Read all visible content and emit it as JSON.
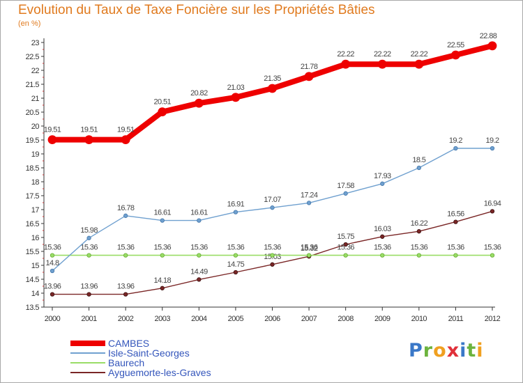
{
  "title": "Evolution du Taux de Taxe Foncière sur les Propriétés Bâties",
  "unit": "(en %)",
  "logo": {
    "text": "Proxiti",
    "letters": [
      {
        "ch": "P",
        "color": "#3a78c8"
      },
      {
        "ch": "r",
        "color": "#6cb33e"
      },
      {
        "ch": "o",
        "color": "#f0a020"
      },
      {
        "ch": "x",
        "color": "#e0303a"
      },
      {
        "ch": "i",
        "color": "#3a78c8"
      },
      {
        "ch": "t",
        "color": "#6cb33e"
      },
      {
        "ch": "i",
        "color": "#f0a020"
      }
    ]
  },
  "chart_data": {
    "type": "line",
    "title": "Evolution du Taux de Taxe Foncière sur les Propriétés Bâties",
    "ylabel": "(en %)",
    "xlabel": "",
    "x": [
      "2000",
      "2001",
      "2002",
      "2003",
      "2004",
      "2005",
      "2006",
      "2007",
      "2008",
      "2009",
      "2010",
      "2011",
      "2012"
    ],
    "ylim": [
      13.5,
      23
    ],
    "yticks": [
      "13.5",
      "14",
      "14.5",
      "15",
      "15.5",
      "16",
      "16.5",
      "17",
      "17.5",
      "18",
      "18.5",
      "19",
      "19.5",
      "20",
      "20.5",
      "21",
      "21.5",
      "22",
      "22.5",
      "23"
    ],
    "grid": false,
    "legend_position": "bottom-left",
    "series": [
      {
        "name": "CAMBES",
        "color": "#ee0000",
        "line_width": 8,
        "marker": 12,
        "values": [
          19.51,
          19.51,
          19.51,
          20.51,
          20.82,
          21.03,
          21.35,
          21.78,
          22.22,
          22.22,
          22.22,
          22.55,
          22.88
        ],
        "labels": [
          "19.51",
          "19.51",
          "19.51",
          "20.51",
          "20.82",
          "21.03",
          "21.35",
          "21.78",
          "22.22",
          "22.22",
          "22.22",
          "22.55",
          "22.88"
        ]
      },
      {
        "name": "Isle-Saint-Georges",
        "color": "#6fa0cf",
        "line_width": 1.4,
        "marker": 5.5,
        "values": [
          14.8,
          15.98,
          16.78,
          16.61,
          16.61,
          16.91,
          17.07,
          17.24,
          17.58,
          17.93,
          18.5,
          19.2,
          19.2
        ],
        "labels": [
          "14.8",
          "15.98",
          "16.78",
          "16.61",
          "16.61",
          "16.91",
          "17.07",
          "17.24",
          "17.58",
          "17.93",
          "18.5",
          "19.2",
          "19.2"
        ]
      },
      {
        "name": "Baurech",
        "color": "#99dd66",
        "line_width": 1.6,
        "marker": 5.5,
        "values": [
          15.36,
          15.36,
          15.36,
          15.36,
          15.36,
          15.36,
          15.36,
          15.36,
          15.36,
          15.36,
          15.36,
          15.36,
          15.36
        ],
        "labels": [
          "15.36",
          "15.36",
          "15.36",
          "15.36",
          "15.36",
          "15.36",
          "15.36",
          "15.36",
          "15.36",
          "15.36",
          "15.36",
          "15.36",
          "15.36"
        ]
      },
      {
        "name": "Ayguemorte-les-Graves",
        "color": "#7a2626",
        "line_width": 1.4,
        "marker": 5.5,
        "values": [
          13.96,
          13.96,
          13.96,
          14.18,
          14.49,
          14.75,
          15.03,
          15.32,
          15.75,
          16.03,
          16.22,
          16.56,
          16.94
        ],
        "labels": [
          "13.96",
          "13.96",
          "13.96",
          "14.18",
          "14.49",
          "14.75",
          "15.03",
          "15.32",
          "15.75",
          "16.03",
          "16.22",
          "16.56",
          "16.94"
        ]
      }
    ]
  }
}
